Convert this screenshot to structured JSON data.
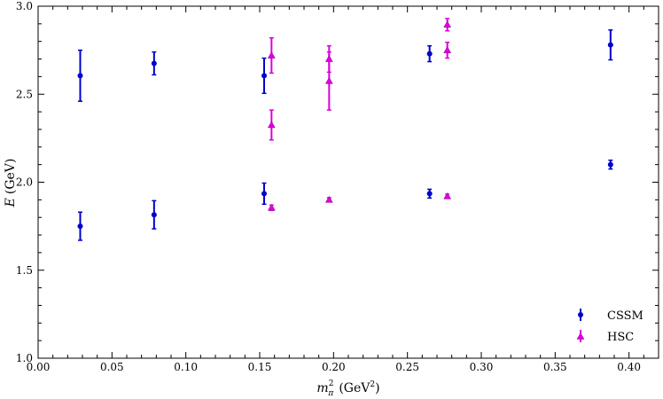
{
  "chart_data": {
    "type": "scatter",
    "xlabel": "m_π² (GeV²)",
    "xlabel_parts": {
      "symbol": "m",
      "sup": "2",
      "sub": "π",
      "unit": "(GeV",
      "unit_sup": "2",
      "unit_close": ")"
    },
    "ylabel": "E (GeV)",
    "ylabel_parts": {
      "symbol": "E",
      "unit": "(GeV)"
    },
    "xlim": [
      0.0,
      0.42
    ],
    "ylim": [
      1.0,
      3.0
    ],
    "xticks": [
      0.0,
      0.05,
      0.1,
      0.15,
      0.2,
      0.25,
      0.3,
      0.35,
      0.4
    ],
    "xtick_labels": [
      "0.00",
      "0.05",
      "0.10",
      "0.15",
      "0.20",
      "0.25",
      "0.30",
      "0.35",
      "0.40"
    ],
    "yticks": [
      1.0,
      1.5,
      2.0,
      2.5,
      3.0
    ],
    "ytick_labels": [
      "1.0",
      "1.5",
      "2.0",
      "2.5",
      "3.0"
    ],
    "grid": false,
    "legend_position": "bottom-right",
    "series": [
      {
        "name": "CSSM",
        "marker": "circle",
        "color": "#0000cc",
        "points": [
          {
            "x": 0.0285,
            "y": 1.75,
            "err": 0.08
          },
          {
            "x": 0.0285,
            "y": 2.605,
            "err": 0.145
          },
          {
            "x": 0.0785,
            "y": 1.815,
            "err": 0.08
          },
          {
            "x": 0.0785,
            "y": 2.675,
            "err": 0.065
          },
          {
            "x": 0.153,
            "y": 1.935,
            "err": 0.06
          },
          {
            "x": 0.153,
            "y": 2.605,
            "err": 0.1
          },
          {
            "x": 0.265,
            "y": 1.935,
            "err": 0.025
          },
          {
            "x": 0.265,
            "y": 2.73,
            "err": 0.045
          },
          {
            "x": 0.3875,
            "y": 2.1,
            "err": 0.025
          },
          {
            "x": 0.3875,
            "y": 2.78,
            "err": 0.085
          }
        ]
      },
      {
        "name": "HSC",
        "marker": "triangle",
        "color": "#dd00dd",
        "points": [
          {
            "x": 0.158,
            "y": 1.855,
            "err": 0.015
          },
          {
            "x": 0.158,
            "y": 2.325,
            "err": 0.085
          },
          {
            "x": 0.158,
            "y": 2.72,
            "err": 0.1
          },
          {
            "x": 0.197,
            "y": 1.9,
            "err": 0.012
          },
          {
            "x": 0.197,
            "y": 2.575,
            "err": 0.165
          },
          {
            "x": 0.197,
            "y": 2.7,
            "err": 0.075
          },
          {
            "x": 0.277,
            "y": 1.92,
            "err": 0.012
          },
          {
            "x": 0.277,
            "y": 2.75,
            "err": 0.045
          },
          {
            "x": 0.277,
            "y": 2.895,
            "err": 0.035
          }
        ]
      }
    ]
  }
}
